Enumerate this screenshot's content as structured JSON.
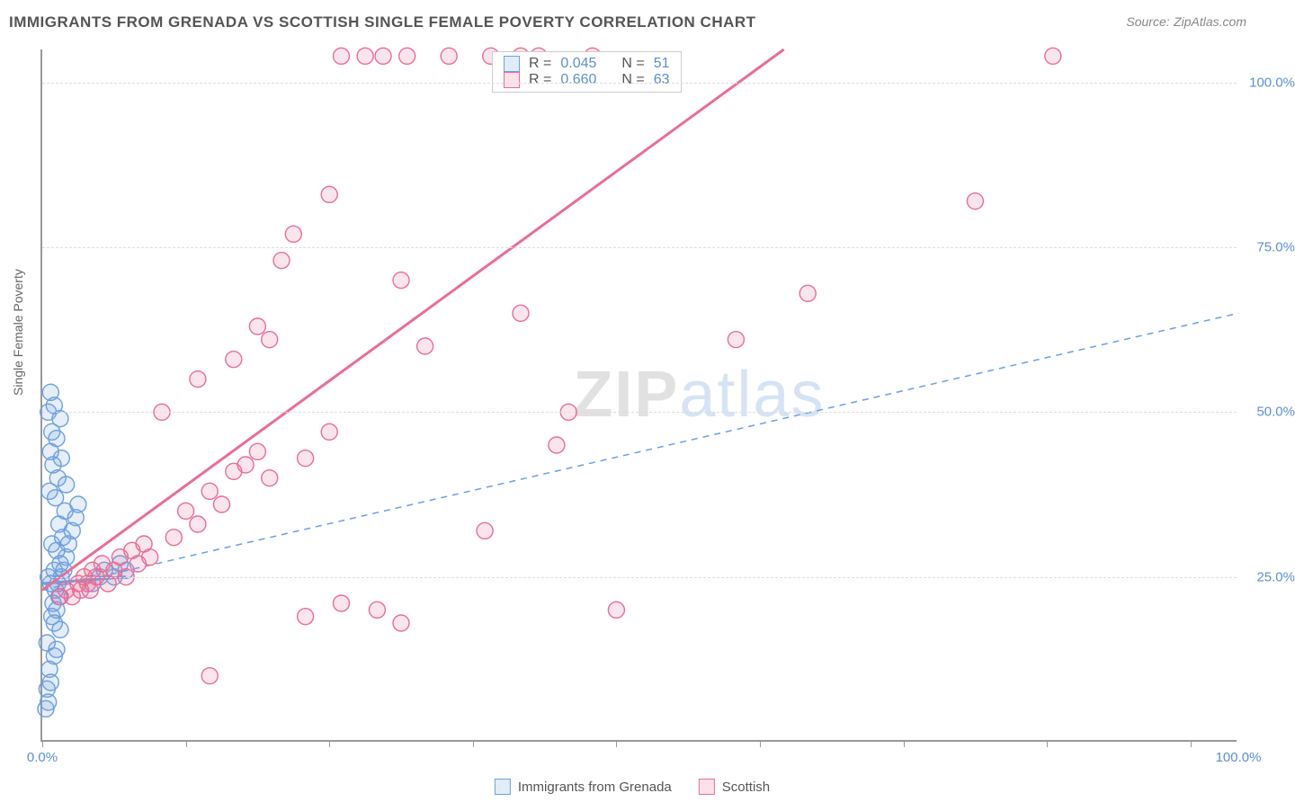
{
  "title": "IMMIGRANTS FROM GRENADA VS SCOTTISH SINGLE FEMALE POVERTY CORRELATION CHART",
  "source_label": "Source:",
  "source_value": "ZipAtlas.com",
  "ylabel": "Single Female Poverty",
  "watermark_a": "ZIP",
  "watermark_b": "atlas",
  "chart": {
    "type": "scatter",
    "background_color": "#ffffff",
    "grid_color": "#dddddd",
    "axis_color": "#999999",
    "text_color": "#666666",
    "value_color": "#5b8fd4",
    "xlim": [
      0,
      100
    ],
    "ylim": [
      0,
      105
    ],
    "xtick_positions": [
      0,
      12,
      24,
      36,
      48,
      60,
      72,
      84,
      96
    ],
    "xtick_labels": {
      "0": "0.0%",
      "100": "100.0%"
    },
    "ytick_positions": [
      25,
      50,
      75,
      100
    ],
    "ytick_labels": {
      "25": "25.0%",
      "50": "50.0%",
      "75": "75.0%",
      "100": "100.0%"
    },
    "marker_radius": 9,
    "marker_fill_opacity": 0.18,
    "marker_stroke_width": 1.4,
    "series": [
      {
        "key": "grenada",
        "label": "Immigrants from Grenada",
        "color": "#6d9fe0",
        "R": "0.045",
        "N": "51",
        "trend_style": "dashed",
        "trend": {
          "x1": 0,
          "y1": 23,
          "x2": 100,
          "y2": 65
        },
        "short_line": {
          "x1": 0,
          "y1": 24,
          "x2": 7,
          "y2": 25
        },
        "points": [
          [
            0.3,
            5
          ],
          [
            0.5,
            6
          ],
          [
            0.4,
            8
          ],
          [
            0.7,
            9
          ],
          [
            0.6,
            11
          ],
          [
            1.0,
            13
          ],
          [
            1.2,
            14
          ],
          [
            0.4,
            15
          ],
          [
            1.5,
            17
          ],
          [
            1.0,
            18
          ],
          [
            0.8,
            19
          ],
          [
            1.2,
            20
          ],
          [
            0.9,
            21
          ],
          [
            1.4,
            22
          ],
          [
            1.1,
            23
          ],
          [
            0.7,
            24
          ],
          [
            1.3,
            24
          ],
          [
            1.6,
            25
          ],
          [
            0.5,
            25
          ],
          [
            1.8,
            26
          ],
          [
            1.0,
            26
          ],
          [
            1.5,
            27
          ],
          [
            2.0,
            28
          ],
          [
            1.2,
            29
          ],
          [
            0.8,
            30
          ],
          [
            2.2,
            30
          ],
          [
            1.7,
            31
          ],
          [
            2.5,
            32
          ],
          [
            1.4,
            33
          ],
          [
            2.8,
            34
          ],
          [
            1.9,
            35
          ],
          [
            3.0,
            36
          ],
          [
            1.1,
            37
          ],
          [
            0.6,
            38
          ],
          [
            2.0,
            39
          ],
          [
            1.3,
            40
          ],
          [
            0.9,
            42
          ],
          [
            1.6,
            43
          ],
          [
            0.7,
            44
          ],
          [
            1.2,
            46
          ],
          [
            0.8,
            47
          ],
          [
            1.5,
            49
          ],
          [
            0.5,
            50
          ],
          [
            1.0,
            51
          ],
          [
            0.7,
            53
          ],
          [
            4.2,
            24
          ],
          [
            4.8,
            25
          ],
          [
            5.2,
            26
          ],
          [
            6.0,
            25
          ],
          [
            6.5,
            27
          ],
          [
            7.0,
            26
          ]
        ]
      },
      {
        "key": "scottish",
        "label": "Scottish",
        "color": "#ea6d94",
        "R": "0.660",
        "N": "63",
        "trend_style": "solid",
        "trend": {
          "x1": 0,
          "y1": 23,
          "x2": 62,
          "y2": 105
        },
        "points": [
          [
            1.5,
            22
          ],
          [
            2.0,
            23
          ],
          [
            2.5,
            22
          ],
          [
            3.0,
            24
          ],
          [
            3.2,
            23
          ],
          [
            3.5,
            25
          ],
          [
            3.8,
            24
          ],
          [
            4.0,
            23
          ],
          [
            4.2,
            26
          ],
          [
            4.5,
            25
          ],
          [
            5.0,
            27
          ],
          [
            5.5,
            24
          ],
          [
            6.0,
            26
          ],
          [
            6.5,
            28
          ],
          [
            7.0,
            25
          ],
          [
            7.5,
            29
          ],
          [
            8.0,
            27
          ],
          [
            8.5,
            30
          ],
          [
            9.0,
            28
          ],
          [
            11.0,
            31
          ],
          [
            12.0,
            35
          ],
          [
            13.0,
            33
          ],
          [
            14.0,
            38
          ],
          [
            15.0,
            36
          ],
          [
            16.0,
            41
          ],
          [
            17.0,
            42
          ],
          [
            18.0,
            44
          ],
          [
            19.0,
            40
          ],
          [
            22.0,
            43
          ],
          [
            24.0,
            47
          ],
          [
            10.0,
            50
          ],
          [
            13.0,
            55
          ],
          [
            16.0,
            58
          ],
          [
            19.0,
            61
          ],
          [
            18.0,
            63
          ],
          [
            20.0,
            73
          ],
          [
            21.0,
            77
          ],
          [
            24.0,
            83
          ],
          [
            30.0,
            70
          ],
          [
            32.0,
            60
          ],
          [
            22.0,
            19
          ],
          [
            25.0,
            21
          ],
          [
            28.0,
            20
          ],
          [
            30.0,
            18
          ],
          [
            14.0,
            10
          ],
          [
            37.0,
            32
          ],
          [
            40.0,
            65
          ],
          [
            44.0,
            50
          ],
          [
            48.0,
            20
          ],
          [
            28.5,
            104
          ],
          [
            30.5,
            104
          ],
          [
            34.0,
            104
          ],
          [
            37.5,
            104
          ],
          [
            40.0,
            104
          ],
          [
            41.5,
            104
          ],
          [
            46.0,
            104
          ],
          [
            84.5,
            104
          ],
          [
            25.0,
            104
          ],
          [
            27.0,
            104
          ],
          [
            58.0,
            61
          ],
          [
            64.0,
            68
          ],
          [
            78.0,
            82
          ],
          [
            43.0,
            45
          ]
        ]
      }
    ]
  },
  "legend_top": {
    "R_label": "R =",
    "N_label": "N ="
  }
}
